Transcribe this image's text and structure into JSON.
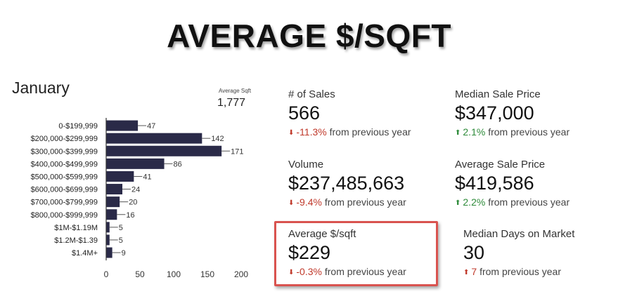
{
  "headline": "AVERAGE $/SQFT",
  "month": "January",
  "avg_sqft": {
    "caption": "Average Sqft",
    "value": "1,777"
  },
  "chart_data": {
    "type": "bar",
    "orientation": "horizontal",
    "categories": [
      "0-$199,999",
      "$200,000-$299,999",
      "$300,000-$399,999",
      "$400,000-$499,999",
      "$500,000-$599,999",
      "$600,000-$699,999",
      "$700,000-$799,999",
      "$800,000-$999,999",
      "$1M-$1.19M",
      "$1.2M-$1.39",
      "$1.4M+"
    ],
    "values": [
      47,
      142,
      171,
      86,
      41,
      24,
      20,
      16,
      5,
      5,
      9
    ],
    "data_labels": [
      "47",
      "142",
      "171",
      "86",
      "41",
      "24",
      "20",
      "16",
      "5",
      "5",
      "9"
    ],
    "xticks": [
      "0",
      "50",
      "100",
      "150",
      "200"
    ],
    "xlim": [
      0,
      200
    ],
    "bar_color": "#2a2a48",
    "grid": false
  },
  "kpis": [
    {
      "label": "# of Sales",
      "value": "566",
      "change": "-11.3%",
      "suffix": "from previous year",
      "direction": "down"
    },
    {
      "label": "Median Sale Price",
      "value": "$347,000",
      "change": "2.1%",
      "suffix": "from previous year",
      "direction": "up"
    },
    {
      "label": "Volume",
      "value": "$237,485,663",
      "change": "-9.4%",
      "suffix": "from previous year",
      "direction": "down"
    },
    {
      "label": "Average Sale Price",
      "value": "$419,586",
      "change": "2.2%",
      "suffix": "from previous year",
      "direction": "up"
    },
    {
      "label": "Average $/sqft",
      "value": "$229",
      "change": "-0.3%",
      "suffix": "from previous year",
      "direction": "down"
    },
    {
      "label": "Median Days on Market",
      "value": "30",
      "change": "7",
      "suffix": "from previous year",
      "direction": "up"
    }
  ],
  "colors": {
    "down": "#c0392b",
    "up": "#2e8b3a",
    "highlight_border": "#d9534f"
  },
  "icons": {
    "down": "down-arrow-icon",
    "up": "up-arrow-icon"
  }
}
